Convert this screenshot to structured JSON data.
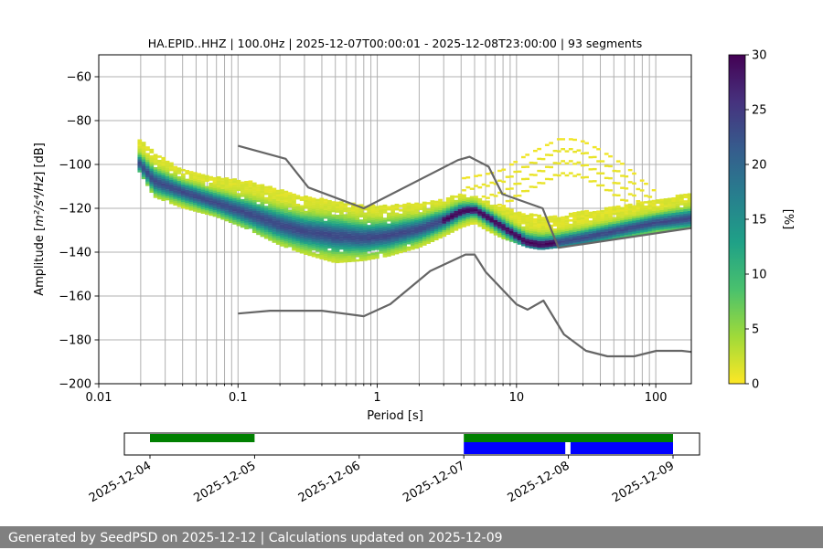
{
  "chart_data": {
    "type": "heatmap",
    "title": "HA.EPID..HHZ | 100.0Hz | 2025-12-07T00:00:01 - 2025-12-08T23:00:00 | 93 segments",
    "xlabel": "Period [s]",
    "ylabel_prefix": "Amplitude [",
    "ylabel_unit": "m²/s⁴/Hz",
    "ylabel_suffix": "] [dB]",
    "xscale": "log",
    "xlim": [
      0.01,
      180
    ],
    "ylim": [
      -200,
      -50
    ],
    "grid": true,
    "x_tick_labels": [
      {
        "value": 0.01,
        "label": "0.01"
      },
      {
        "value": 0.1,
        "label": "0.1"
      },
      {
        "value": 1,
        "label": "1"
      },
      {
        "value": 10,
        "label": "10"
      },
      {
        "value": 100,
        "label": "100"
      }
    ],
    "y_ticks": [
      -60,
      -80,
      -100,
      -120,
      -140,
      -160,
      -180,
      -200
    ],
    "y_tick_labels": [
      "−60",
      "−80",
      "−100",
      "−120",
      "−140",
      "−160",
      "−180",
      "−200"
    ],
    "psd_mode": {
      "x": [
        0.019,
        0.025,
        0.04,
        0.07,
        0.12,
        0.2,
        0.3,
        0.5,
        0.8,
        1.2,
        2,
        3,
        4,
        5,
        6,
        8,
        10,
        12,
        15,
        20,
        30,
        50,
        100,
        180
      ],
      "y": [
        -99,
        -108,
        -113,
        -118,
        -123,
        -128,
        -131,
        -133,
        -134,
        -133,
        -130,
        -126,
        -122,
        -121,
        -124,
        -129,
        -133,
        -136,
        -137,
        -136,
        -134,
        -131,
        -127,
        -125
      ]
    },
    "psd_spread": {
      "x": [
        0.019,
        0.025,
        0.04,
        0.07,
        0.12,
        0.2,
        0.3,
        0.5,
        0.8,
        1.2,
        2,
        3,
        4,
        5,
        6,
        8,
        10,
        12,
        15,
        20,
        30,
        50,
        100,
        180
      ],
      "upper": [
        -88,
        -95,
        -103,
        -106,
        -108,
        -112,
        -115,
        -117,
        -119,
        -119,
        -118,
        -116,
        -114,
        -115,
        -117,
        -120,
        -122,
        -123,
        -124,
        -124,
        -122,
        -120,
        -117,
        -113
      ],
      "lower": [
        -102,
        -115,
        -120,
        -124,
        -130,
        -137,
        -141,
        -145,
        -144,
        -142,
        -138,
        -133,
        -129,
        -127,
        -130,
        -134,
        -136,
        -138,
        -139,
        -138,
        -136,
        -134,
        -131,
        -129
      ]
    },
    "microseism_bump": {
      "x": [
        4,
        6,
        8,
        10,
        12,
        15,
        20,
        25,
        30,
        40,
        60,
        80,
        100
      ],
      "y": [
        -107,
        -105,
        -103,
        -99,
        -96,
        -93,
        -89,
        -89,
        -90,
        -94,
        -101,
        -108,
        -113
      ]
    },
    "nhnm": {
      "x": [
        0.1,
        0.22,
        0.32,
        0.8,
        3.8,
        4.6,
        6.3,
        7.9,
        15.4,
        20,
        180
      ],
      "y": [
        -91.5,
        -97.4,
        -110.5,
        -120,
        -98,
        -96.5,
        -101,
        -113.5,
        -120,
        -138,
        -129
      ]
    },
    "nlnm": {
      "x": [
        0.1,
        0.17,
        0.4,
        0.8,
        1.24,
        2.4,
        4.3,
        5,
        6,
        10,
        12,
        15.6,
        21.9,
        31.6,
        45,
        70,
        101,
        154,
        180
      ],
      "y": [
        -168,
        -166.7,
        -166.7,
        -169.2,
        -163.7,
        -148.6,
        -141.1,
        -141.1,
        -149,
        -163.8,
        -166.2,
        -162.1,
        -177.5,
        -185,
        -187.5,
        -187.5,
        -185,
        -185,
        -185.5
      ]
    },
    "colorbar": {
      "label": "[%]",
      "min": 0,
      "max": 30,
      "ticks": [
        0,
        5,
        10,
        15,
        20,
        25,
        30
      ],
      "colors": [
        "#fde725",
        "#a0da39",
        "#4ac16d",
        "#1fa187",
        "#277f8e",
        "#365c8d",
        "#46327e",
        "#440154"
      ]
    },
    "coverage": {
      "dates": [
        "2025-12-04",
        "2025-12-05",
        "2025-12-06",
        "2025-12-07",
        "2025-12-08",
        "2025-12-09"
      ],
      "green_blocks": [
        [
          0.0,
          1.0
        ],
        [
          3.0,
          5.0
        ]
      ],
      "blue_blocks": [
        [
          3.0,
          3.97
        ],
        [
          4.02,
          5.0
        ]
      ],
      "green_color": "#008000",
      "blue_color": "#0000ff"
    }
  },
  "footer": {
    "text": "Generated by SeedPSD on 2025-12-12 | Calculations updated on 2025-12-09",
    "bg_color": "#808080"
  }
}
